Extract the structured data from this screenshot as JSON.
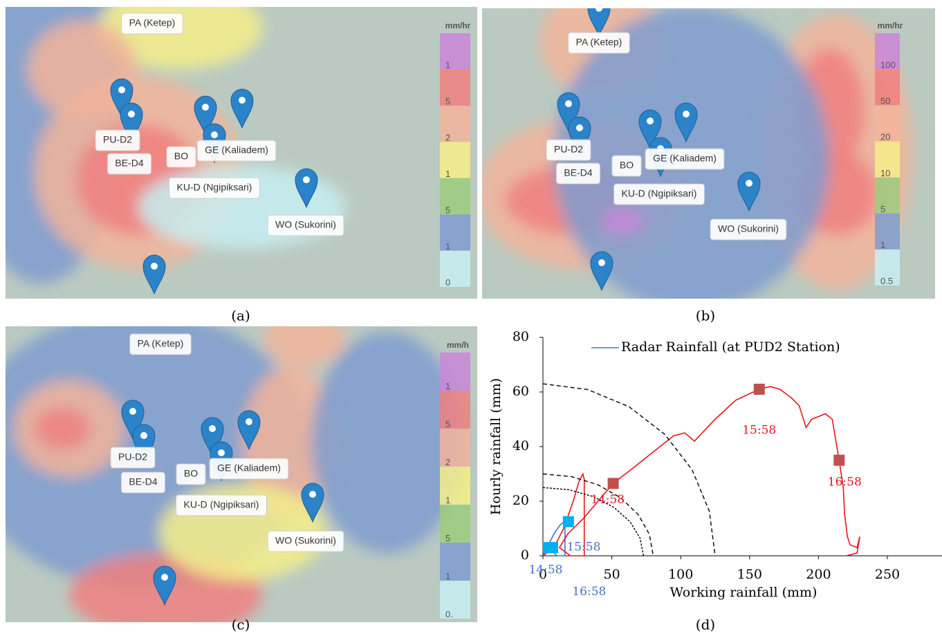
{
  "maps": [
    {
      "caption": "(a)",
      "legend_title": "mm/hr",
      "legend_labels": [
        "1",
        "5",
        "2",
        "1",
        "5",
        "1",
        "0"
      ],
      "stations": [
        "PA (Ketep)",
        "PU-D2",
        "BE-D4",
        "BO",
        "GE (Kaliadem)",
        "KU-D (Ngipiksari)",
        "WO (Sukorini)"
      ]
    },
    {
      "caption": "(b)",
      "legend_title": "mm/hr",
      "legend_labels": [
        "100",
        "50",
        "20",
        "10",
        "5",
        "1",
        "0.5"
      ],
      "stations": [
        "PA (Ketep)",
        "PU-D2",
        "BE-D4",
        "BO",
        "GE (Kaliadem)",
        "KU-D (Ngipiksari)",
        "WO (Sukorini)"
      ]
    },
    {
      "caption": "(c)",
      "legend_title": "mm/h",
      "legend_labels": [
        "1",
        "5",
        "2",
        "1",
        "5",
        "1",
        "0."
      ],
      "stations": [
        "PA (Ketep)",
        "PU-D2",
        "BE-D4",
        "BO",
        "GE (Kaliadem)",
        "KU-D (Ngipiksari)",
        "WO (Sukorini)"
      ]
    }
  ],
  "chart_data": {
    "type": "line",
    "caption": "(d)",
    "x_label": "Working rainfall (mm)",
    "y_label": "Hourly rainfall (mm)",
    "xlim": [
      0,
      290
    ],
    "ylim": [
      0,
      80
    ],
    "xticks": [
      0,
      50,
      100,
      150,
      200,
      250
    ],
    "yticks": [
      0,
      20,
      40,
      60,
      80
    ],
    "series": [
      {
        "name": "Radar Rainfall (at PUD2 Station)",
        "color": "#4472c4",
        "x": [
          0,
          3,
          8,
          12,
          16,
          16,
          10,
          5,
          7
        ],
        "values": [
          0,
          3,
          8,
          11,
          13,
          0,
          0,
          3,
          3
        ]
      },
      {
        "color": "#e8141c",
        "x": [
          0,
          8,
          15,
          22,
          26,
          29,
          30,
          30,
          20,
          12,
          18,
          30,
          40,
          51,
          65,
          80,
          95,
          103,
          110,
          125,
          140,
          157,
          165,
          172,
          180,
          186,
          191,
          195,
          205,
          210,
          212,
          215,
          218,
          219,
          221,
          223,
          228,
          230,
          228,
          220
        ],
        "values": [
          0,
          3,
          10,
          20,
          27,
          30,
          28,
          0,
          0,
          3,
          8,
          14,
          20,
          26.5,
          32,
          38,
          44,
          45,
          42,
          50,
          57,
          61,
          62,
          61,
          58,
          55,
          47,
          50,
          52,
          50,
          44,
          35,
          25,
          15,
          7,
          4,
          3,
          7,
          1,
          0
        ]
      },
      {
        "color": "#000000",
        "style": "dashed",
        "x": [
          0,
          32.4,
          62.5,
          88.4,
          108.3,
          120.8,
          125
        ],
        "values": [
          63,
          60.9,
          54.6,
          44.5,
          31.5,
          16.3,
          0
        ]
      },
      {
        "color": "#000000",
        "style": "dashed",
        "x": [
          0,
          20.7,
          40,
          56.6,
          69.3,
          77.3,
          80
        ],
        "values": [
          30,
          29,
          26,
          21.2,
          15,
          7.8,
          0
        ]
      },
      {
        "color": "#000000",
        "style": "dotted",
        "x": [
          0,
          18.9,
          36.5,
          51.6,
          63.2,
          70.5,
          73
        ],
        "values": [
          25,
          24.2,
          21.7,
          17.7,
          12.5,
          6.5,
          0
        ]
      },
      {
        "color": "#c0504d",
        "marker": "square",
        "label_color": "#e8141c",
        "x": [
          51,
          157,
          215
        ],
        "values": [
          26.5,
          61,
          35
        ],
        "labels": [
          "14:58",
          "15:58",
          "16:58"
        ]
      },
      {
        "color": "#00b0f0",
        "marker": "square",
        "label_color": "#4472c4",
        "x": [
          4,
          7,
          18.5
        ],
        "values": [
          3,
          3,
          12.5
        ],
        "labels": [
          "14:58",
          "15:58",
          "16:58"
        ]
      }
    ]
  }
}
